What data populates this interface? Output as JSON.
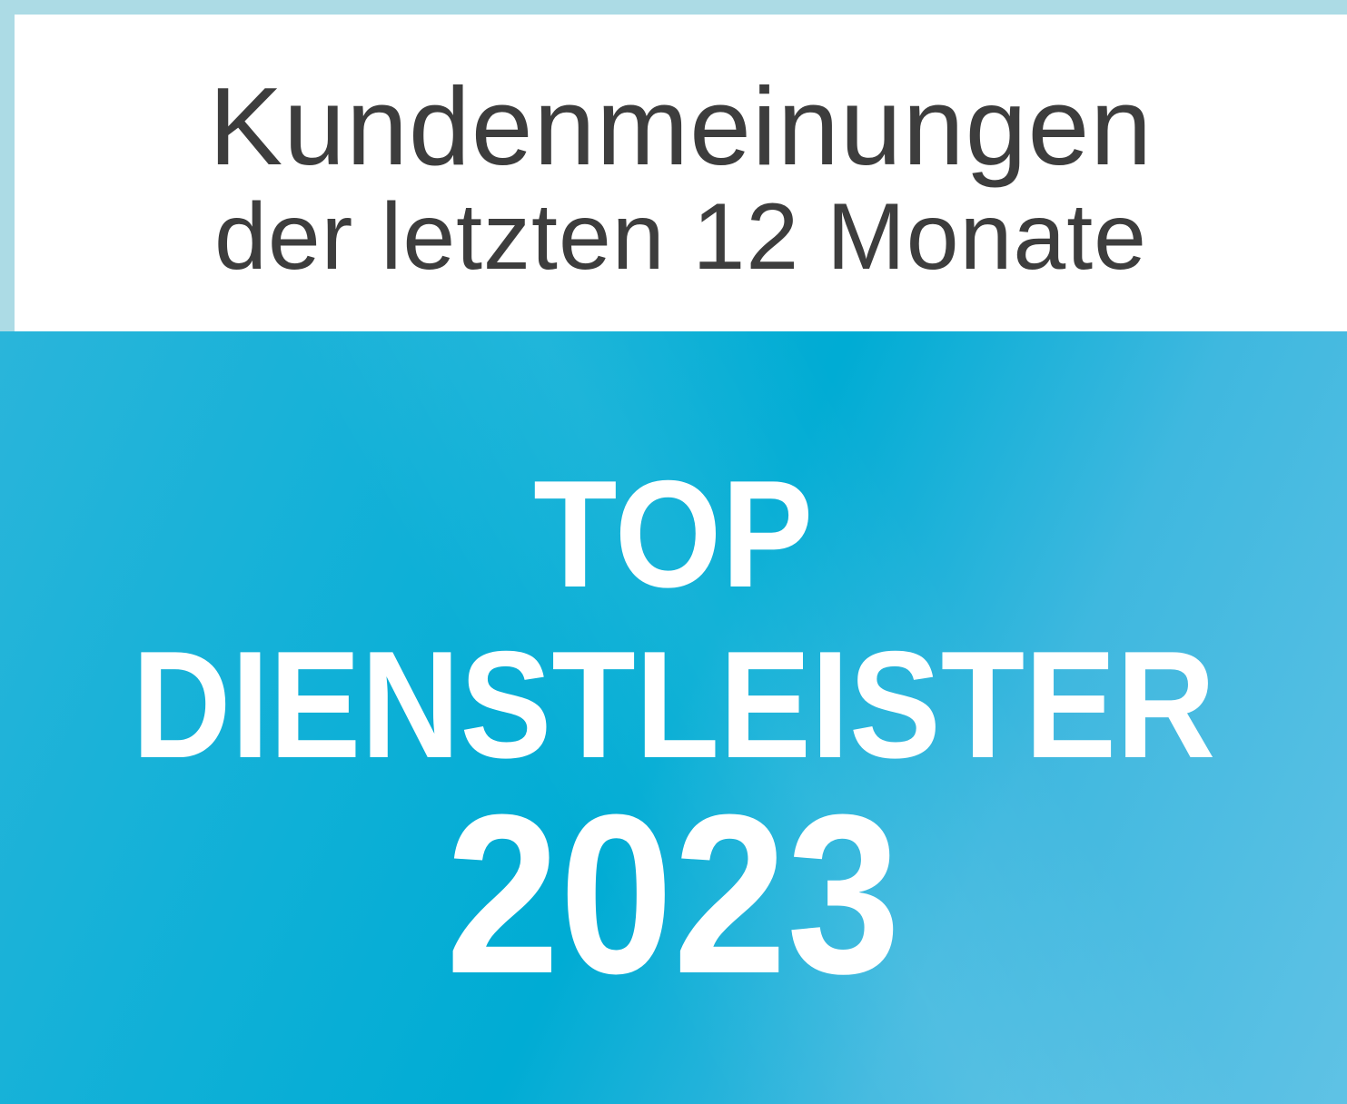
{
  "header": {
    "line1": "Kundenmeinungen",
    "line2": "der letzten 12 Monate"
  },
  "award": {
    "line1": "TOP",
    "line2": "DIENSTLEISTER",
    "year": "2023"
  },
  "colors": {
    "border": "#acdbe5",
    "header_bg": "#ffffff",
    "header_text": "#3d3d3d",
    "award_bg": "#00acd4",
    "award_text": "#ffffff"
  }
}
